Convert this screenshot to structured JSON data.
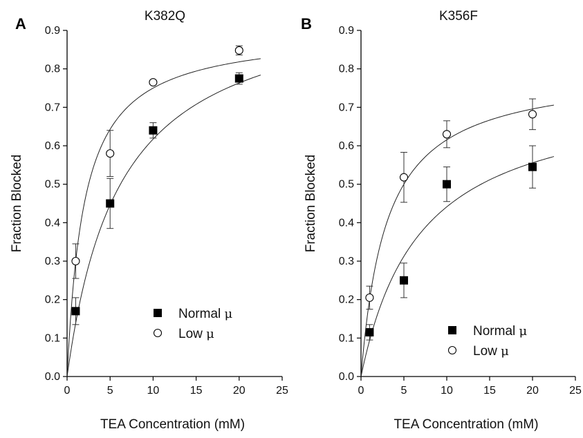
{
  "chart_data": [
    {
      "type": "scatter",
      "panel": "A",
      "title": "K382Q",
      "xlabel": "TEA Concentration (mM)",
      "ylabel": "Fraction Blocked",
      "xlim": [
        0,
        25
      ],
      "ylim": [
        0,
        0.9
      ],
      "x_ticks": [
        "0",
        "5",
        "10",
        "15",
        "20",
        "25"
      ],
      "y_ticks": [
        "0.0",
        "0.1",
        "0.2",
        "0.3",
        "0.4",
        "0.5",
        "0.6",
        "0.7",
        "0.8",
        "0.9"
      ],
      "legend_position": "lower-right",
      "series": [
        {
          "name": "Normal μ",
          "marker": "filled-square",
          "x": [
            1,
            5,
            10,
            20
          ],
          "y": [
            0.17,
            0.45,
            0.64,
            0.775
          ],
          "err": [
            0.035,
            0.065,
            0.02,
            0.015
          ],
          "fit": {
            "bmax": 1.0,
            "kd": 6.2
          }
        },
        {
          "name": "Low μ",
          "marker": "open-circle",
          "x": [
            1,
            5,
            10,
            20
          ],
          "y": [
            0.3,
            0.58,
            0.765,
            0.848
          ],
          "err": [
            0.045,
            0.06,
            0.005,
            0.012
          ],
          "fit": {
            "bmax": 0.9,
            "kd": 2.0
          }
        }
      ]
    },
    {
      "type": "scatter",
      "panel": "B",
      "title": "K356F",
      "xlabel": "TEA Concentration (mM)",
      "ylabel": "Fraction Blocked",
      "xlim": [
        0,
        25
      ],
      "ylim": [
        0,
        0.9
      ],
      "x_ticks": [
        "0",
        "5",
        "10",
        "15",
        "20",
        "25"
      ],
      "y_ticks": [
        "0.0",
        "0.1",
        "0.2",
        "0.3",
        "0.4",
        "0.5",
        "0.6",
        "0.7",
        "0.8",
        "0.9"
      ],
      "legend_position": "lower-right",
      "series": [
        {
          "name": "Normal μ",
          "marker": "filled-square",
          "x": [
            1,
            5,
            10,
            20
          ],
          "y": [
            0.115,
            0.25,
            0.5,
            0.545
          ],
          "err": [
            0.02,
            0.045,
            0.045,
            0.055
          ],
          "fit": {
            "bmax": 0.75,
            "kd": 7.0
          }
        },
        {
          "name": "Low μ",
          "marker": "open-circle",
          "x": [
            1,
            5,
            10,
            20
          ],
          "y": [
            0.205,
            0.518,
            0.63,
            0.682
          ],
          "err": [
            0.03,
            0.065,
            0.035,
            0.04
          ],
          "fit": {
            "bmax": 0.8,
            "kd": 3.0
          }
        }
      ]
    }
  ]
}
